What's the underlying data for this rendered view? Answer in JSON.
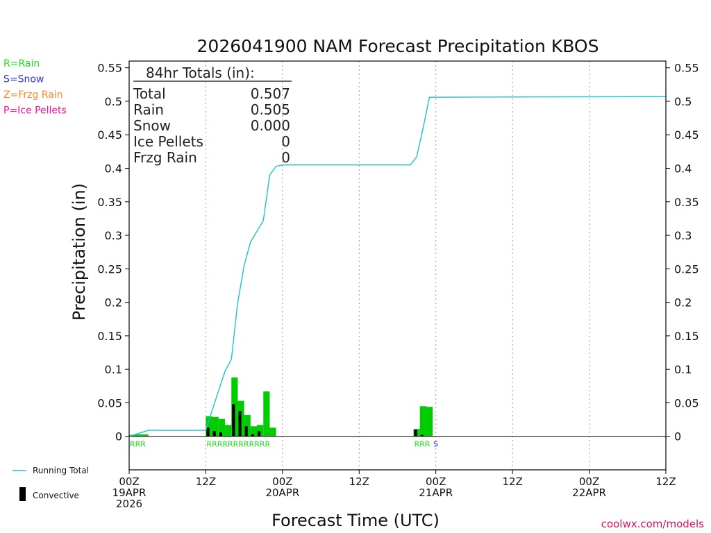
{
  "chart_data": {
    "type": "bar",
    "title": "2026041900 NAM Forecast Precipitation KBOS",
    "xlabel": "Forecast Time (UTC)",
    "ylabel": "Precipitation (in)",
    "xlim_hours": [
      0,
      84
    ],
    "ylim": [
      -0.05,
      0.56
    ],
    "y_ticks": [
      0,
      0.05,
      0.1,
      0.15,
      0.2,
      0.25,
      0.3,
      0.35,
      0.4,
      0.45,
      0.5,
      0.55
    ],
    "y_tick_labels": [
      "0",
      "0.05",
      "0.1",
      "0.15",
      "0.2",
      "0.25",
      "0.3",
      "0.35",
      "0.4",
      "0.45",
      "0.5",
      "0.55"
    ],
    "x_ticks": [
      {
        "hour": 0,
        "line1": "00Z",
        "line2": "19APR",
        "line3": "2026"
      },
      {
        "hour": 12,
        "line1": "12Z",
        "line2": "",
        "line3": ""
      },
      {
        "hour": 24,
        "line1": "00Z",
        "line2": "20APR",
        "line3": ""
      },
      {
        "hour": 36,
        "line1": "12Z",
        "line2": "",
        "line3": ""
      },
      {
        "hour": 48,
        "line1": "00Z",
        "line2": "21APR",
        "line3": ""
      },
      {
        "hour": 60,
        "line1": "12Z",
        "line2": "",
        "line3": ""
      },
      {
        "hour": 72,
        "line1": "00Z",
        "line2": "22APR",
        "line3": ""
      },
      {
        "hour": 84,
        "line1": "12Z",
        "line2": "",
        "line3": ""
      }
    ],
    "precip_bars": [
      {
        "start": 0,
        "end": 1,
        "total": 0.002,
        "convective": 0
      },
      {
        "start": 1,
        "end": 2,
        "total": 0.003,
        "convective": 0
      },
      {
        "start": 2,
        "end": 3,
        "total": 0.003,
        "convective": 0
      },
      {
        "start": 12,
        "end": 13,
        "total": 0.03,
        "convective": 0.013
      },
      {
        "start": 13,
        "end": 14,
        "total": 0.029,
        "convective": 0.008
      },
      {
        "start": 14,
        "end": 15,
        "total": 0.026,
        "convective": 0.006
      },
      {
        "start": 15,
        "end": 16,
        "total": 0.017,
        "convective": 0
      },
      {
        "start": 16,
        "end": 17,
        "total": 0.088,
        "convective": 0.048
      },
      {
        "start": 17,
        "end": 18,
        "total": 0.053,
        "convective": 0.038
      },
      {
        "start": 18,
        "end": 19,
        "total": 0.032,
        "convective": 0.015
      },
      {
        "start": 19,
        "end": 20,
        "total": 0.015,
        "convective": 0.003
      },
      {
        "start": 20,
        "end": 21,
        "total": 0.017,
        "convective": 0.008
      },
      {
        "start": 21,
        "end": 22,
        "total": 0.067,
        "convective": 0
      },
      {
        "start": 22,
        "end": 23,
        "total": 0.013,
        "convective": 0
      },
      {
        "start": 44.5,
        "end": 45.5,
        "total": 0.011,
        "convective": 0.01
      },
      {
        "start": 45.5,
        "end": 46.5,
        "total": 0.045,
        "convective": 0.002
      },
      {
        "start": 46.5,
        "end": 47.5,
        "total": 0.044,
        "convective": 0
      }
    ],
    "running_total": {
      "hours": [
        0,
        3,
        12,
        13,
        14,
        15,
        16,
        17,
        18,
        19,
        20,
        21,
        22,
        23,
        24,
        44,
        45,
        46,
        47,
        84
      ],
      "values": [
        0,
        0.009,
        0.009,
        0.039,
        0.068,
        0.097,
        0.115,
        0.2,
        0.255,
        0.29,
        0.306,
        0.322,
        0.39,
        0.403,
        0.405,
        0.405,
        0.417,
        0.46,
        0.506,
        0.507
      ]
    },
    "ptype_groups": [
      {
        "hour": 0,
        "text": "RRR",
        "type": "rain"
      },
      {
        "hour": 12,
        "text": "RRRRRRRRRRRR",
        "type": "rain"
      },
      {
        "hour": 44.5,
        "text": "RRR",
        "type": "rain"
      },
      {
        "hour": 47.5,
        "text": "S",
        "type": "snow"
      }
    ],
    "totals_box": {
      "header": "84hr Totals (in):",
      "rows": [
        {
          "label": "Total",
          "value": "0.507"
        },
        {
          "label": "Rain",
          "value": "0.505"
        },
        {
          "label": "Snow",
          "value": "0.000"
        },
        {
          "label": "Ice Pellets",
          "value": "0"
        },
        {
          "label": "Frzg Rain",
          "value": "0"
        }
      ]
    },
    "precip_type_legend": [
      {
        "text": "R=Rain",
        "color": "#22dd22"
      },
      {
        "text": "S=Snow",
        "color": "#3333dd"
      },
      {
        "text": "Z=Frzg Rain",
        "color": "#ff8822"
      },
      {
        "text": "P=Ice Pellets",
        "color": "#ee1199"
      }
    ],
    "series_legend": {
      "running_total": "Running Total",
      "convective": "Convective"
    },
    "colors": {
      "bar": "#00cc00",
      "convective": "#000000",
      "running_total": "#20c0c8",
      "rain": "#22dd22",
      "snow": "#3333dd",
      "grid": "#999999",
      "credit": "#d4145a"
    }
  },
  "footer": {
    "credit": "coolwx.com/models"
  }
}
